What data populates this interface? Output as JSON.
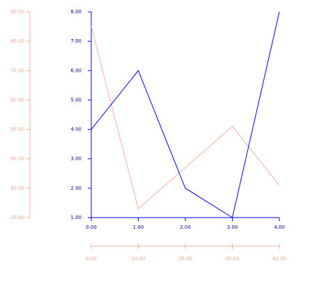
{
  "chart_data": {
    "type": "line",
    "xlim": [
      0,
      4
    ],
    "xticks": [
      {
        "value": 0,
        "label": "0.00"
      },
      {
        "value": 1,
        "label": "1.00"
      },
      {
        "value": 2,
        "label": "2.00"
      },
      {
        "value": 3,
        "label": "3.00"
      },
      {
        "value": 4,
        "label": "4.00"
      }
    ],
    "ylim": [
      1,
      8
    ],
    "yticks": [
      {
        "value": 1,
        "label": "1.00"
      },
      {
        "value": 2,
        "label": "2.00"
      },
      {
        "value": 3,
        "label": "3.00"
      },
      {
        "value": 4,
        "label": "4.00"
      },
      {
        "value": 5,
        "label": "5.00"
      },
      {
        "value": 6,
        "label": "6.00"
      },
      {
        "value": 7,
        "label": "7.00"
      },
      {
        "value": 8,
        "label": "8.00"
      }
    ],
    "x2lim": [
      0,
      40
    ],
    "x2ticks": [
      {
        "value": 0,
        "label": "0.00"
      },
      {
        "value": 10,
        "label": "10.00"
      },
      {
        "value": 20,
        "label": "20.00"
      },
      {
        "value": 30,
        "label": "30.00"
      },
      {
        "value": 40,
        "label": "40.00"
      }
    ],
    "y2lim": [
      20,
      90
    ],
    "y2ticks": [
      {
        "value": 20,
        "label": "20.00"
      },
      {
        "value": 30,
        "label": "30.00"
      },
      {
        "value": 40,
        "label": "40.00"
      },
      {
        "value": 50,
        "label": "50.00"
      },
      {
        "value": 60,
        "label": "60.00"
      },
      {
        "value": 70,
        "label": "70.00"
      },
      {
        "value": 80,
        "label": "80.00"
      },
      {
        "value": 90,
        "label": "90.00"
      }
    ],
    "axis_color": "#0000ff",
    "axis2_color": "#f0b0a0",
    "series": [
      {
        "color": "#0000ff",
        "x": [
          0,
          1,
          2,
          3,
          4
        ],
        "values": [
          4,
          6,
          2,
          1,
          8
        ]
      },
      {
        "color": "#ffb0a0",
        "axis": "y2",
        "x": [
          0,
          10,
          20,
          30,
          40
        ],
        "values": [
          85,
          23,
          37,
          51,
          31
        ]
      }
    ]
  }
}
